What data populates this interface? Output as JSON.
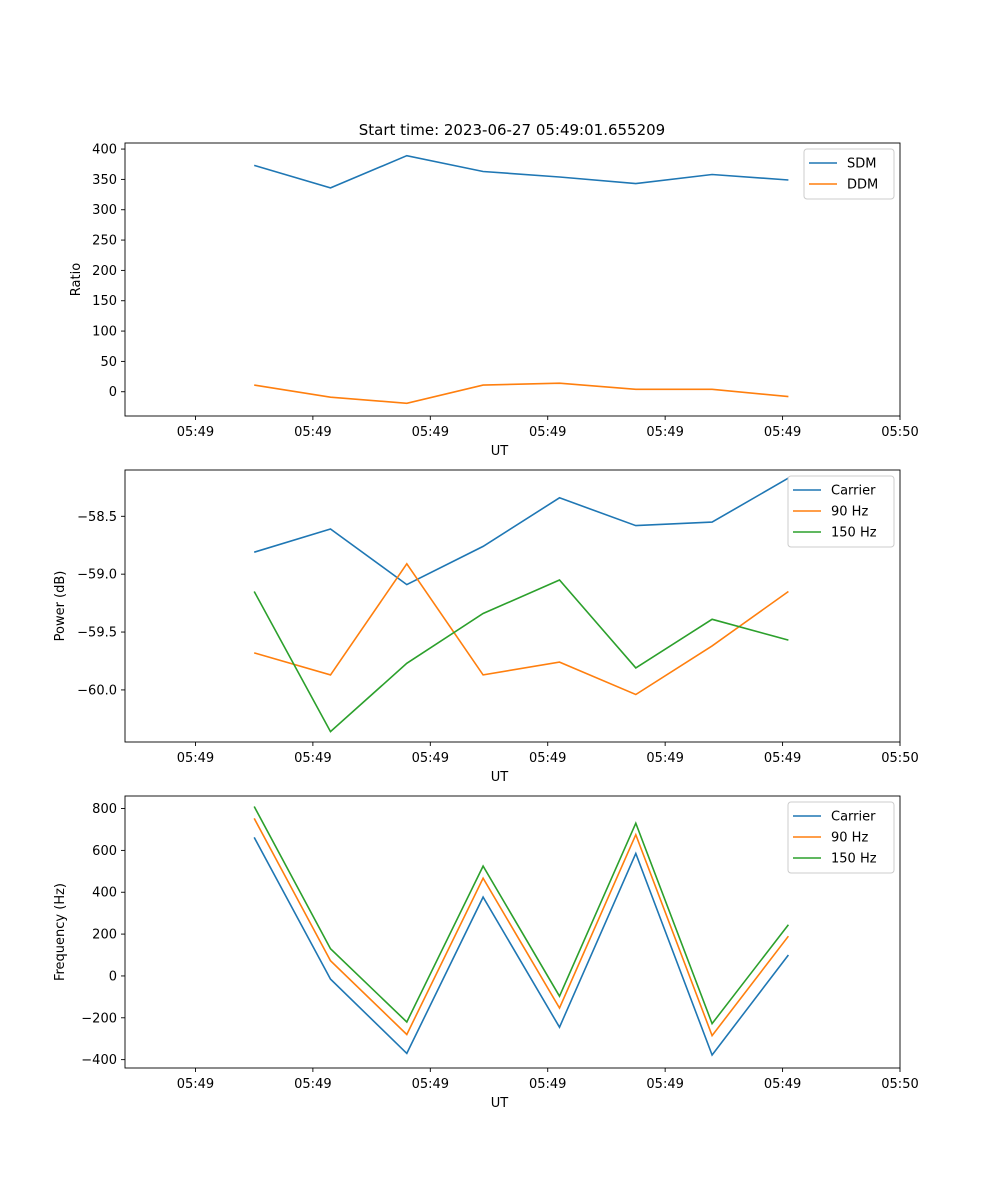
{
  "figure": {
    "title": "Start time: 2023-06-27 05:49:01.655209"
  },
  "chart_data": [
    {
      "type": "line",
      "title": "Start time: 2023-06-27 05:49:01.655209",
      "xlabel": "UT",
      "ylabel": "Ratio",
      "x_tick_labels": [
        "05:49",
        "05:49",
        "05:49",
        "05:49",
        "05:49",
        "05:49",
        "05:50"
      ],
      "x": [
        0.5,
        1.15,
        1.8,
        2.45,
        3.1,
        3.75,
        4.4,
        5.05
      ],
      "xlim": [
        -0.6,
        6.0
      ],
      "x_ticks": [
        0,
        1,
        2,
        3,
        4,
        5,
        6
      ],
      "ylim": [
        -40,
        410
      ],
      "y_ticks": [
        0,
        50,
        100,
        150,
        200,
        250,
        300,
        350,
        400
      ],
      "y_tick_labels": [
        "0",
        "50",
        "100",
        "150",
        "200",
        "250",
        "300",
        "350",
        "400"
      ],
      "legend_position": "top-right",
      "grid": false,
      "series": [
        {
          "name": "SDM",
          "color": "#1f77b4",
          "values": [
            373,
            336,
            389,
            363,
            354,
            343,
            358,
            349
          ]
        },
        {
          "name": "DDM",
          "color": "#ff7f0e",
          "values": [
            11,
            -9,
            -19,
            11,
            14,
            4,
            4,
            -8
          ]
        }
      ]
    },
    {
      "type": "line",
      "xlabel": "UT",
      "ylabel": "Power (dB)",
      "x_tick_labels": [
        "05:49",
        "05:49",
        "05:49",
        "05:49",
        "05:49",
        "05:49",
        "05:50"
      ],
      "x": [
        0.5,
        1.15,
        1.8,
        2.45,
        3.1,
        3.75,
        4.4,
        5.05
      ],
      "xlim": [
        -0.6,
        6.0
      ],
      "x_ticks": [
        0,
        1,
        2,
        3,
        4,
        5,
        6
      ],
      "ylim": [
        -60.45,
        -58.1
      ],
      "y_ticks": [
        -60.0,
        -59.5,
        -59.0,
        -58.5
      ],
      "y_tick_labels": [
        "−60.0",
        "−59.5",
        "−59.0",
        "−58.5"
      ],
      "legend_position": "top-right",
      "grid": false,
      "series": [
        {
          "name": "Carrier",
          "color": "#1f77b4",
          "values": [
            -58.81,
            -58.61,
            -59.09,
            -58.76,
            -58.34,
            -58.58,
            -58.55,
            -58.17
          ]
        },
        {
          "name": "90 Hz",
          "color": "#ff7f0e",
          "values": [
            -59.68,
            -59.87,
            -58.91,
            -59.87,
            -59.76,
            -60.04,
            -59.62,
            -59.15
          ]
        },
        {
          "name": "150 Hz",
          "color": "#2ca02c",
          "values": [
            -59.15,
            -60.36,
            -59.77,
            -59.34,
            -59.05,
            -59.81,
            -59.39,
            -59.57
          ]
        }
      ]
    },
    {
      "type": "line",
      "xlabel": "UT",
      "ylabel": "Frequency (Hz)",
      "x_tick_labels": [
        "05:49",
        "05:49",
        "05:49",
        "05:49",
        "05:49",
        "05:49",
        "05:50"
      ],
      "x": [
        0.5,
        1.15,
        1.8,
        2.45,
        3.1,
        3.75,
        4.4,
        5.05
      ],
      "xlim": [
        -0.6,
        6.0
      ],
      "x_ticks": [
        0,
        1,
        2,
        3,
        4,
        5,
        6
      ],
      "ylim": [
        -440,
        860
      ],
      "y_ticks": [
        -400,
        -200,
        0,
        200,
        400,
        600,
        800
      ],
      "y_tick_labels": [
        "−400",
        "−200",
        "0",
        "200",
        "400",
        "600",
        "800"
      ],
      "legend_position": "top-right",
      "grid": false,
      "series": [
        {
          "name": "Carrier",
          "color": "#1f77b4",
          "values": [
            662,
            -15,
            -370,
            377,
            -245,
            585,
            -378,
            100
          ]
        },
        {
          "name": "90 Hz",
          "color": "#ff7f0e",
          "values": [
            753,
            73,
            -280,
            467,
            -153,
            675,
            -285,
            190
          ]
        },
        {
          "name": "150 Hz",
          "color": "#2ca02c",
          "values": [
            810,
            130,
            -220,
            525,
            -97,
            730,
            -228,
            245
          ]
        }
      ]
    }
  ]
}
